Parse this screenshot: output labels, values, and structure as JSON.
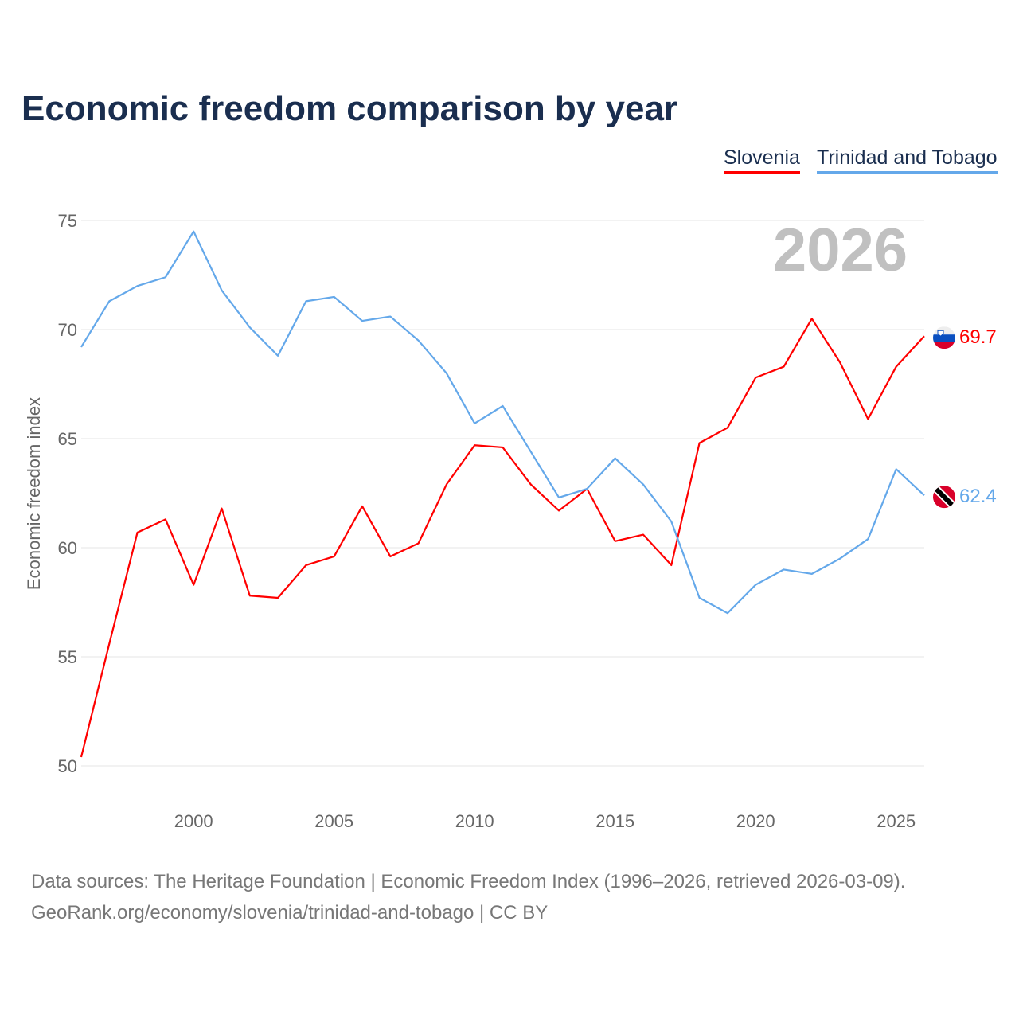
{
  "chart_data": {
    "type": "line",
    "title": "Economic freedom comparison by year",
    "ylabel": "Economic freedom index",
    "xlabel": "",
    "xlim": [
      1996,
      2026
    ],
    "ylim": [
      50,
      75
    ],
    "yticks": [
      50,
      55,
      60,
      65,
      70,
      75
    ],
    "xticks": [
      2000,
      2005,
      2010,
      2015,
      2020,
      2025
    ],
    "grid": true,
    "legend_position": "top-right",
    "year_watermark": "2026",
    "x": [
      1996,
      1997,
      1998,
      1999,
      2000,
      2001,
      2002,
      2003,
      2004,
      2005,
      2006,
      2007,
      2008,
      2009,
      2010,
      2011,
      2012,
      2013,
      2014,
      2015,
      2016,
      2017,
      2018,
      2019,
      2020,
      2021,
      2022,
      2023,
      2024,
      2025,
      2026
    ],
    "series": [
      {
        "name": "Slovenia",
        "color": "#ff0000",
        "end_label": "69.7",
        "flag": "slovenia-flag",
        "values": [
          50.4,
          55.6,
          60.7,
          61.3,
          58.3,
          61.8,
          57.8,
          57.7,
          59.2,
          59.6,
          61.9,
          59.6,
          60.2,
          62.9,
          64.7,
          64.6,
          62.9,
          61.7,
          62.7,
          60.3,
          60.6,
          59.2,
          64.8,
          65.5,
          67.8,
          68.3,
          70.5,
          68.5,
          65.9,
          68.3,
          69.7
        ]
      },
      {
        "name": "Trinidad and Tobago",
        "color": "#64a8ea",
        "end_label": "62.4",
        "flag": "trinidad-flag",
        "values": [
          69.2,
          71.3,
          72.0,
          72.4,
          74.5,
          71.8,
          70.1,
          68.8,
          71.3,
          71.5,
          70.4,
          70.6,
          69.5,
          68.0,
          65.7,
          66.5,
          64.4,
          62.3,
          62.7,
          64.1,
          62.9,
          61.2,
          57.7,
          57.0,
          58.3,
          59.0,
          58.8,
          59.5,
          60.4,
          63.6,
          62.4
        ]
      }
    ]
  },
  "footer": {
    "line1": "Data sources: The Heritage Foundation | Economic Freedom Index (1996–2026, retrieved 2026-03-09).",
    "line2": "GeoRank.org/economy/slovenia/trinidad-and-tobago | CC BY"
  }
}
